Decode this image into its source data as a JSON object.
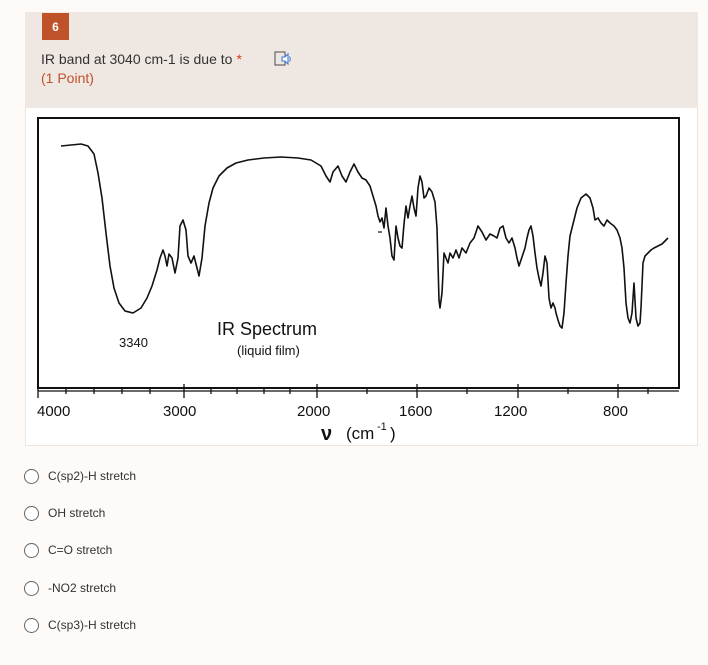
{
  "question": {
    "number": "6",
    "text": "IR band at 3040 cm-1 is due to",
    "required_mark": "*",
    "points": "(1 Point)"
  },
  "spectrum": {
    "title": "IR Spectrum",
    "subtitle": "(liquid film)",
    "peak_label": "3340",
    "x_ticks": [
      "4000",
      "3000",
      "2000",
      "1600",
      "1200",
      "800"
    ],
    "x_axis_symbol": "ν",
    "x_axis_unit_base": "(cm",
    "x_axis_unit_exp": "-1",
    "x_axis_unit_close": ")"
  },
  "options": [
    {
      "label": "C(sp2)-H stretch",
      "selected": false
    },
    {
      "label": "OH stretch",
      "selected": false
    },
    {
      "label": "C=O stretch",
      "selected": false
    },
    {
      "label": "-NO2 stretch",
      "selected": false
    },
    {
      "label": "C(sp3)-H stretch",
      "selected": false
    }
  ],
  "colors": {
    "accent": "#c0522a",
    "required": "#d23f1b",
    "header_bg": "#efe7e2"
  }
}
